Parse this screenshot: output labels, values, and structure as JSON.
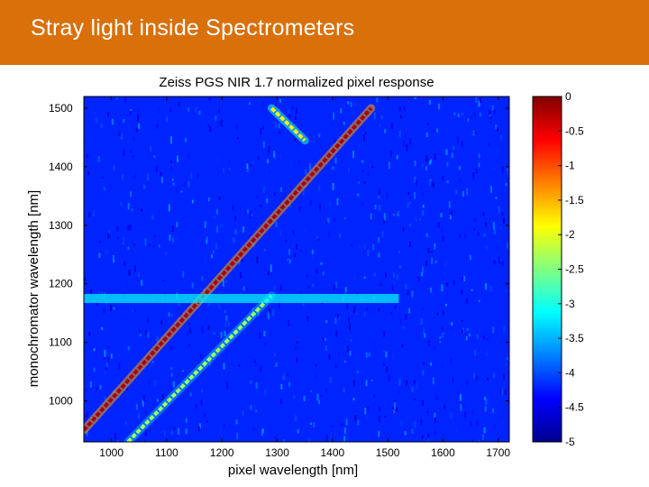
{
  "slide": {
    "title": "Stray light inside Spectrometers",
    "title_bg": "#d9700a",
    "title_color": "#ffffff"
  },
  "chart_data": {
    "type": "heatmap",
    "title": "Zeiss PGS NIR 1.7 normalized pixel response",
    "xlabel": "pixel wavelength [nm]",
    "ylabel": "monochromator wavelength [nm]",
    "xlim": [
      950,
      1720
    ],
    "ylim": [
      930,
      1520
    ],
    "x_ticks": [
      1000,
      1100,
      1200,
      1300,
      1400,
      1500,
      1600,
      1700
    ],
    "y_ticks": [
      1000,
      1100,
      1200,
      1300,
      1400,
      1500
    ],
    "colorbar": {
      "range": [
        -5,
        0
      ],
      "ticks": [
        0,
        -0.5,
        -1,
        -1.5,
        -2,
        -2.5,
        -3,
        -3.5,
        -4,
        -4.5,
        -5
      ],
      "colormap": "jet"
    },
    "background_level": -4.2,
    "features": [
      {
        "name": "main diagonal",
        "level": -0.2,
        "points": [
          [
            950,
            950
          ],
          [
            1470,
            1500
          ]
        ]
      },
      {
        "name": "stray light band",
        "level": -2.3,
        "points": [
          [
            1030,
            930
          ],
          [
            1290,
            1180
          ]
        ]
      },
      {
        "name": "upper ghost line",
        "level": -1.8,
        "points": [
          [
            1290,
            1500
          ],
          [
            1350,
            1445
          ]
        ]
      },
      {
        "name": "horizontal band",
        "level": -3.2,
        "y": 1175,
        "x_range": [
          950,
          1520
        ]
      }
    ],
    "grid": false
  }
}
